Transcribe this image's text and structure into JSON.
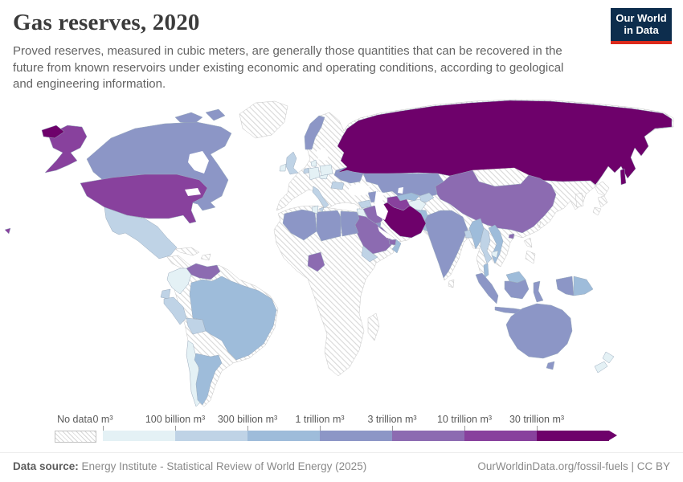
{
  "header": {
    "title": "Gas reserves, 2020",
    "subtitle": "Proved reserves, measured in cubic meters, are generally those quantities that can be recovered in the future from known reservoirs under existing economic and operating conditions, according to geological and engineering information.",
    "logo": {
      "line1": "Our World",
      "line2": "in Data",
      "bg_color": "#0d2d4d",
      "accent_color": "#dc2a1c"
    }
  },
  "legend": {
    "no_data_label": "No data"
  },
  "chart_data": {
    "type": "choropleth_map",
    "title": "Gas reserves, 2020",
    "unit": "m³",
    "projection": "world",
    "no_data": {
      "label": "No data",
      "fill": "hatched"
    },
    "bins": [
      {
        "label": "0 m³",
        "color": "#e4f1f5"
      },
      {
        "label": "100 billion m³",
        "color": "#bfd3e6"
      },
      {
        "label": "300 billion m³",
        "color": "#9ebcda"
      },
      {
        "label": "1 trillion m³",
        "color": "#8c96c6"
      },
      {
        "label": "3 trillion m³",
        "color": "#8c6bb1"
      },
      {
        "label": "10 trillion m³",
        "color": "#88419d"
      },
      {
        "label": "30 trillion m³",
        "color": "#6e016b"
      }
    ],
    "countries": {
      "russia": 6,
      "iran": 6,
      "united-states": 5,
      "turkmenistan": 5,
      "qatar": 5,
      "venezuela": 4,
      "china": 4,
      "saudi-arabia": 4,
      "nigeria": 4,
      "iraq": 4,
      "united-arab-emirates": 4,
      "canada": 3,
      "norway": 3,
      "ukraine": 3,
      "kazakhstan": 3,
      "azerbaijan": 3,
      "kuwait": 3,
      "algeria": 3,
      "libya": 3,
      "egypt": 3,
      "india": 3,
      "australia": 3,
      "indonesia": 3,
      "brazil": 2,
      "argentina": 2,
      "uzbekistan": 2,
      "oman": 2,
      "vietnam": 2,
      "myanmar": 2,
      "pakistan": 2,
      "malaysia": 2,
      "papua-new-guinea": 2,
      "united-kingdom": 1,
      "mexico": 1,
      "peru": 1,
      "bolivia": 1,
      "thailand": 1,
      "italy": 1,
      "netherlands": 1,
      "romania": 1,
      "syria": 1,
      "yemen": 1,
      "ecuador": 1,
      "bangladesh": 1,
      "kyrgyzstan": 1,
      "germany": 0,
      "poland": 0,
      "denmark": 0,
      "colombia": 0,
      "chile": 0,
      "afghanistan": 0,
      "ireland": 0,
      "tunisia": 0,
      "jordan": 0,
      "czechia": 0,
      "cambodia": 0,
      "new-zealand": 0,
      "greenland": "nd",
      "central-america": "nd",
      "cuba": "nd",
      "hispaniola": "nd",
      "mongolia": "nd",
      "japan": "nd",
      "korea": "nd",
      "philippines": "nd",
      "taiwan": "nd",
      "sri-lanka": "nd",
      "madagascar": "nd",
      "africa-other": "nd",
      "eurasia-other": "nd",
      "south-america-other": "nd"
    }
  },
  "footer": {
    "source_label": "Data source:",
    "source_value": "Energy Institute - Statistical Review of World Energy (2025)",
    "credit": "OurWorldinData.org/fossil-fuels | CC BY"
  }
}
